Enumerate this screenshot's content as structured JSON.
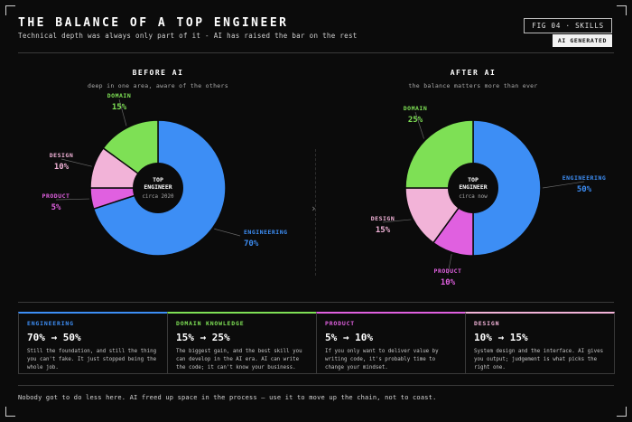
{
  "header": {
    "title": "THE BALANCE OF A TOP ENGINEER",
    "subtitle": "Technical depth was always only part of it - AI has raised the bar on the rest",
    "fig_tag": "FIG 04 · SKILLS",
    "badge": "AI GENERATED"
  },
  "colors": {
    "engineering": "#3d8ef5",
    "domain": "#7ee055",
    "design": "#f2b3d8",
    "product": "#e060e0",
    "background": "#0b0b0b"
  },
  "chart_data": [
    {
      "type": "pie",
      "title": "BEFORE AI",
      "subtitle": "deep in one area, aware of the others",
      "center_label": [
        "TOP",
        "ENGINEER"
      ],
      "center_sub": "circa 2020",
      "slices": [
        {
          "name": "ENGINEERING",
          "value": 70,
          "label": "70%"
        },
        {
          "name": "PRODUCT",
          "value": 5,
          "label": "5%"
        },
        {
          "name": "DESIGN",
          "value": 10,
          "label": "10%"
        },
        {
          "name": "DOMAIN",
          "value": 15,
          "label": "15%"
        }
      ]
    },
    {
      "type": "pie",
      "title": "AFTER AI",
      "subtitle": "the balance matters more than ever",
      "center_label": [
        "TOP",
        "ENGINEER"
      ],
      "center_sub": "circa now",
      "slices": [
        {
          "name": "ENGINEERING",
          "value": 50,
          "label": "50%"
        },
        {
          "name": "PRODUCT",
          "value": 10,
          "label": "10%"
        },
        {
          "name": "DESIGN",
          "value": 15,
          "label": "15%"
        },
        {
          "name": "DOMAIN",
          "value": 25,
          "label": "25%"
        }
      ]
    }
  ],
  "panels": [
    {
      "title": "ENGINEERING",
      "value": "70% → 50%",
      "desc": "Still the foundation, and still the thing you can't fake. It just stopped being the whole job.",
      "color": "#3d8ef5"
    },
    {
      "title": "DOMAIN KNOWLEDGE",
      "value": "15% → 25%",
      "desc": "The biggest gain, and the best skill you can develop in the AI era. AI can write the code; it can't know your business.",
      "color": "#7ee055"
    },
    {
      "title": "PRODUCT",
      "value": "5% → 10%",
      "desc": "If you only want to deliver value by writing code, it's probably time to change your mindset.",
      "color": "#e060e0"
    },
    {
      "title": "DESIGN",
      "value": "10% → 15%",
      "desc": "System design and the interface. AI gives you output; judgement is what picks the right one.",
      "color": "#f2b3d8"
    }
  ],
  "footer": "Nobody got to do less here. AI freed up space in the process — use it to move up the chain, not to coast."
}
